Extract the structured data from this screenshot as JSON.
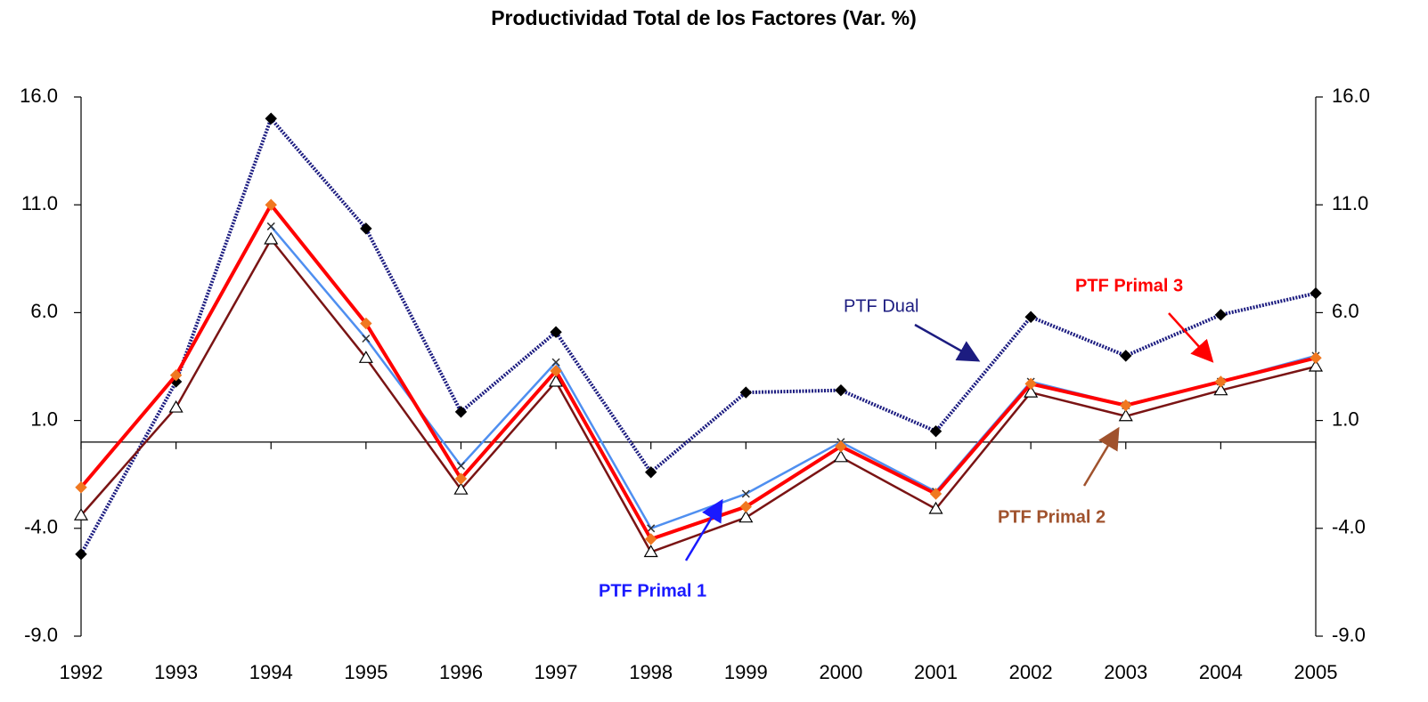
{
  "chart_data": {
    "type": "line",
    "title": "Productividad Total de los Factores (Var. %)",
    "categories": [
      "1992",
      "1993",
      "1994",
      "1995",
      "1996",
      "1997",
      "1998",
      "1999",
      "2000",
      "2001",
      "2002",
      "2003",
      "2004",
      "2005"
    ],
    "ylim": [
      -9,
      16
    ],
    "yticks": [
      {
        "value": -9,
        "label": "-9.0"
      },
      {
        "value": -4,
        "label": "-4.0"
      },
      {
        "value": 1,
        "label": "1.0"
      },
      {
        "value": 6,
        "label": "6.0"
      },
      {
        "value": 11,
        "label": "11.0"
      },
      {
        "value": 16,
        "label": "16.0"
      }
    ],
    "y2lim": [
      -9,
      16
    ],
    "y2ticks": [
      {
        "value": -9,
        "label": "-9.0"
      },
      {
        "value": -4,
        "label": "-4.0"
      },
      {
        "value": 1,
        "label": "1.0"
      },
      {
        "value": 6,
        "label": "6.0"
      },
      {
        "value": 11,
        "label": "11.0"
      },
      {
        "value": 16,
        "label": "16.0"
      }
    ],
    "grid": false,
    "series": [
      {
        "name": "PTF Dual",
        "color": "#1c1c80",
        "marker": "diamond",
        "marker_color": "#000000",
        "values": [
          -5.2,
          2.8,
          15.0,
          9.9,
          1.4,
          5.1,
          -1.4,
          2.3,
          2.4,
          0.5,
          5.8,
          4.0,
          5.9,
          6.9
        ]
      },
      {
        "name": "PTF Primal 3",
        "color": "#ff0000",
        "marker": "diamond",
        "marker_color": "#f07820",
        "values": [
          -2.1,
          3.1,
          11.0,
          5.5,
          -1.7,
          3.3,
          -4.5,
          -3.0,
          -0.2,
          -2.4,
          2.7,
          1.7,
          2.8,
          3.9
        ]
      },
      {
        "name": "PTF Primal 1",
        "color": "#4f8ff0",
        "marker": "cross",
        "marker_color": "#333333",
        "values": [
          null,
          null,
          10.0,
          4.8,
          -1.1,
          3.7,
          -4.0,
          -2.4,
          0.0,
          -2.3,
          2.8,
          1.7,
          2.8,
          4.0
        ]
      },
      {
        "name": "PTF Primal 2",
        "color": "#7a1414",
        "marker": "triangle",
        "marker_color": "#ffffff",
        "values": [
          -3.4,
          1.6,
          9.4,
          3.9,
          -2.2,
          2.8,
          -5.1,
          -3.5,
          -0.7,
          -3.1,
          2.3,
          1.2,
          2.4,
          3.5
        ]
      }
    ]
  }
}
